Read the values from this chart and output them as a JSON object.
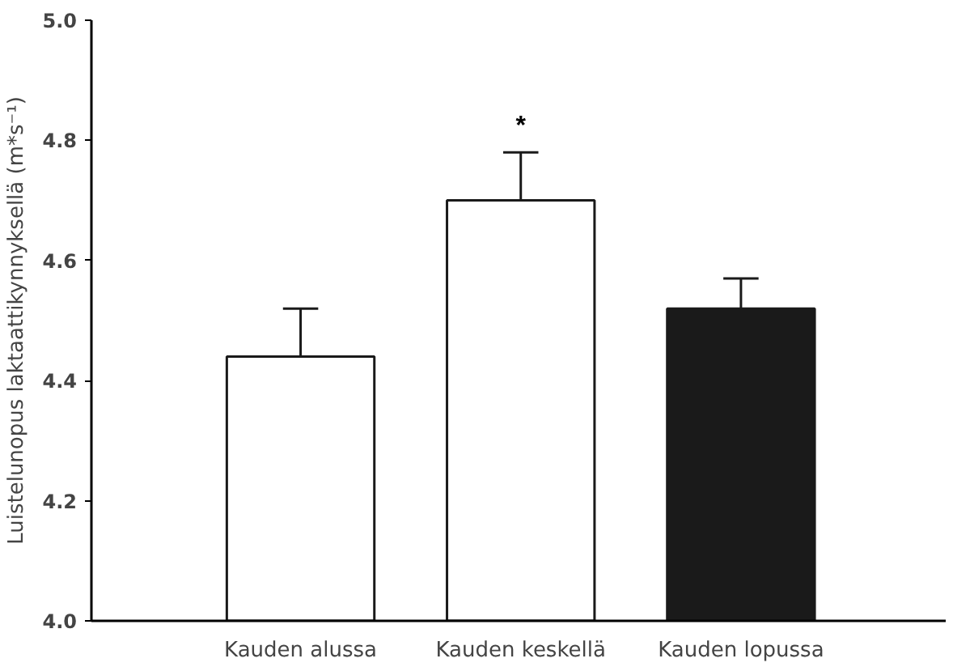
{
  "chart_data": {
    "type": "bar",
    "ylabel": "Luistelunopus laktaattikynnyksellä (m*s⁻¹)",
    "categories": [
      "Kauden alussa",
      "Kauden keskellä",
      "Kauden lopussa"
    ],
    "values": [
      4.44,
      4.7,
      4.52
    ],
    "colors": [
      "#ffffff",
      "#ffffff",
      "#1a1a1a"
    ],
    "errors": [
      [
        4.44,
        4.52
      ],
      [
        4.7,
        4.78
      ],
      [
        4.52,
        4.57
      ]
    ],
    "annotations": [
      "*"
    ],
    "ylim": [
      4.0,
      5.0
    ],
    "yticks": [
      {
        "value": 4.0,
        "label": "4.0"
      },
      {
        "value": 4.2,
        "label": "4.2"
      },
      {
        "value": 4.4,
        "label": "4.4"
      },
      {
        "value": 4.6,
        "label": "4.6"
      },
      {
        "value": 4.8,
        "label": "4.8"
      },
      {
        "value": 5.0,
        "label": "5.0"
      }
    ],
    "grid": false
  }
}
